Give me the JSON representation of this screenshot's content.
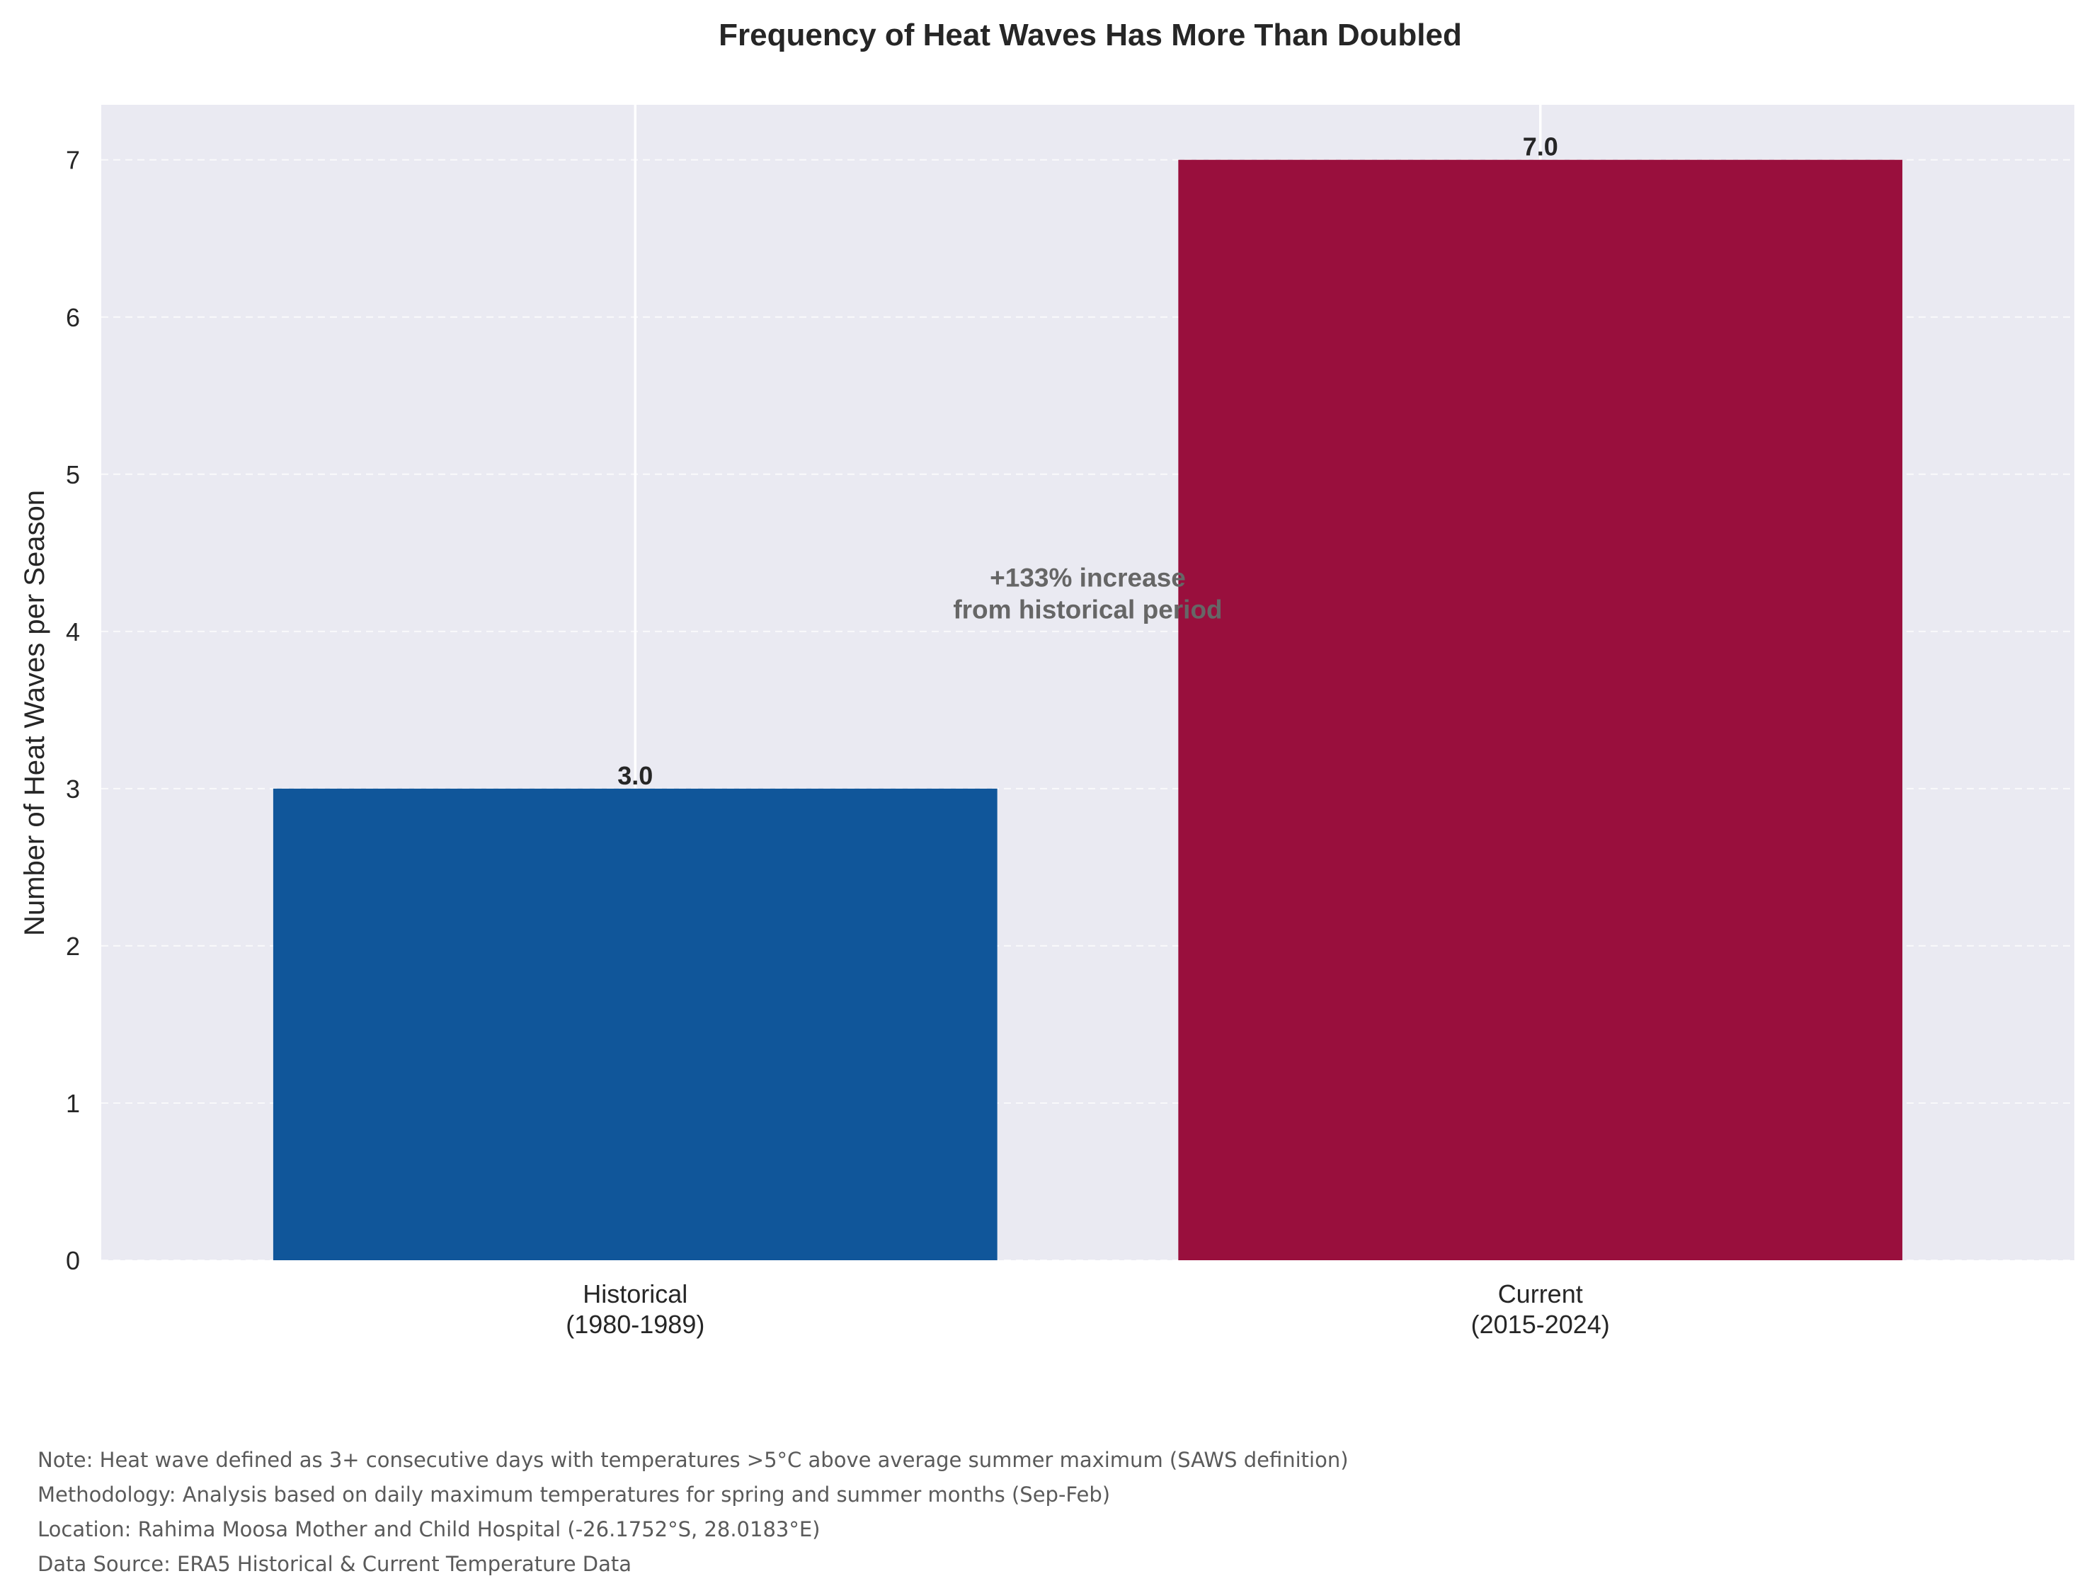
{
  "chart_data": {
    "type": "bar",
    "title": "Frequency of Heat Waves Has More Than Doubled",
    "ylabel": "Number of Heat Waves per Season",
    "xlabel": "",
    "categories": [
      [
        "Historical",
        "(1980-1989)"
      ],
      [
        "Current",
        "(2015-2024)"
      ]
    ],
    "values": [
      3.0,
      7.0
    ],
    "value_labels": [
      "3.0",
      "7.0"
    ],
    "bar_colors": [
      "#10569a",
      "#990f3d"
    ],
    "ylim": [
      0,
      7.35
    ],
    "yticks": [
      0,
      1,
      2,
      3,
      4,
      5,
      6,
      7
    ],
    "grid": true,
    "legend": "none",
    "annotation": {
      "lines": [
        "+133% increase",
        "from historical period"
      ],
      "x": 0.5,
      "y": 4.15,
      "color": "#666666"
    },
    "background": "#eaeaf2"
  },
  "footnotes": [
    "Note: Heat wave defined as 3+ consecutive days with temperatures >5°C above average summer maximum (SAWS definition)",
    "Methodology: Analysis based on daily maximum temperatures for spring and summer months (Sep-Feb)",
    "Location: Rahima Moosa Mother and Child Hospital (-26.1752°S, 28.0183°E)",
    "Data Source: ERA5 Historical & Current Temperature Data"
  ]
}
